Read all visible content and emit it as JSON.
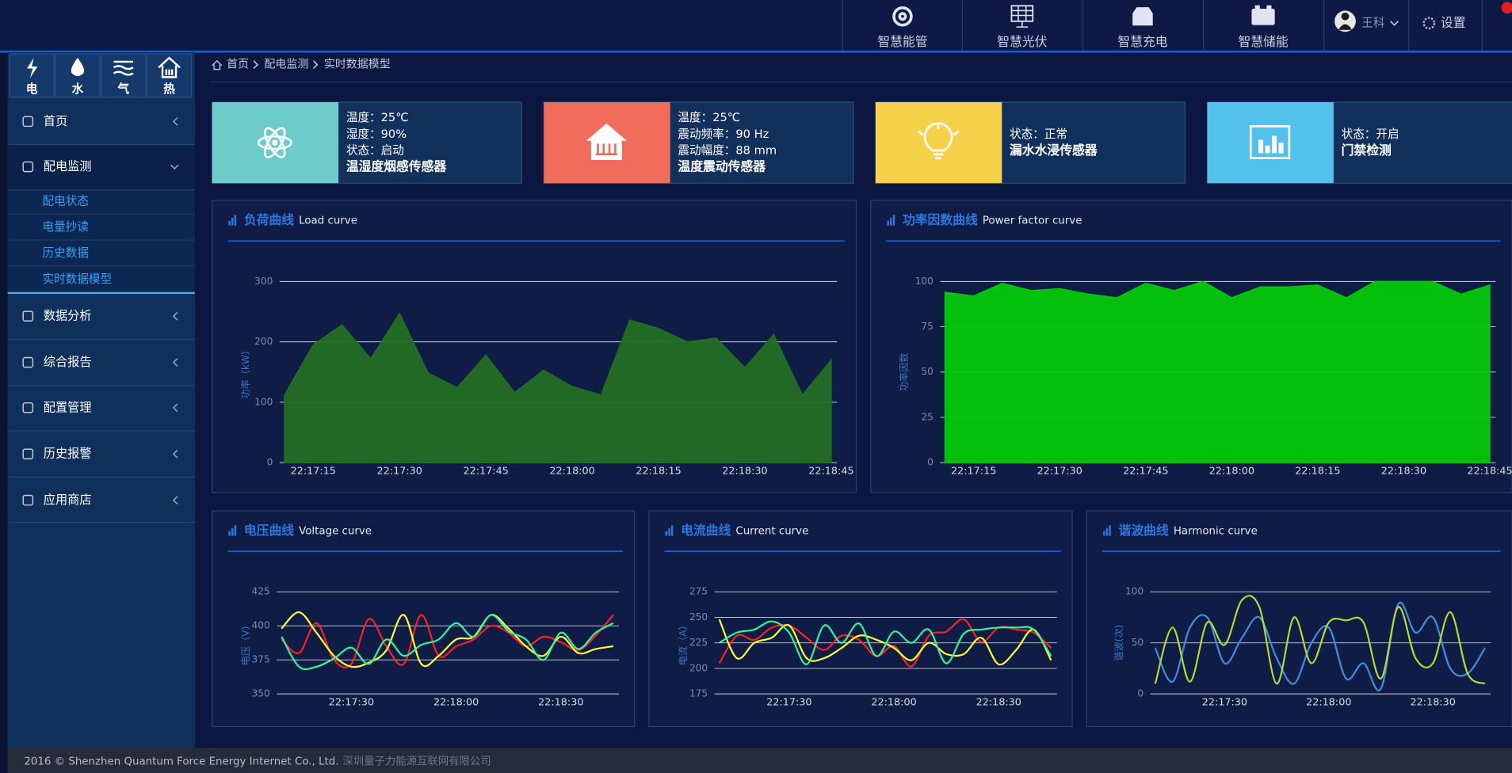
{
  "header": {
    "nav": [
      "智慧能管",
      "智慧光伏",
      "智慧充电",
      "智慧储能"
    ],
    "user": "王科",
    "settings": "设置"
  },
  "sidebar": {
    "energy_tabs": [
      "电",
      "水",
      "气",
      "热"
    ],
    "menu": [
      {
        "label": "首页"
      },
      {
        "label": "配电监测",
        "children": [
          "配电状态",
          "电量抄读",
          "历史数据",
          "实时数据模型"
        ]
      },
      {
        "label": "数据分析"
      },
      {
        "label": "综合报告"
      },
      {
        "label": "配置管理"
      },
      {
        "label": "历史报警"
      },
      {
        "label": "应用商店"
      }
    ]
  },
  "breadcrumb": [
    "首页",
    "配电监测",
    "实时数据模型"
  ],
  "cards": [
    {
      "color": "#6dcbca",
      "lines": [
        "温度：25℃",
        "湿度：90%",
        "状态：启动"
      ],
      "name": "温湿度烟感传感器"
    },
    {
      "color": "#f26c5c",
      "lines": [
        "温度：25℃",
        "震动频率：90 Hz",
        "震动幅度：88 mm"
      ],
      "name": "温度震动传感器"
    },
    {
      "color": "#f6d24b",
      "lines": [
        "状态：正常"
      ],
      "name": "漏水水浸传感器"
    },
    {
      "color": "#52c1ec",
      "lines": [
        "状态：开启"
      ],
      "name": "门禁检测"
    }
  ],
  "chart_data": [
    {
      "type": "area",
      "title": "负荷曲线",
      "subtitle": "Load curve",
      "ylabel": "功率（kW）",
      "categories": [
        null,
        "22:17:15",
        null,
        null,
        "22:17:30",
        null,
        null,
        "22:17:45",
        null,
        null,
        "22:18:00",
        null,
        null,
        "22:18:15",
        null,
        null,
        "22:18:30",
        null,
        null,
        "22:18:45"
      ],
      "values": [
        112,
        195,
        228,
        172,
        247,
        148,
        124,
        178,
        116,
        153,
        126,
        112,
        236,
        222,
        200,
        206,
        157,
        212,
        112,
        170
      ],
      "color": "#246e24",
      "ylim": [
        0,
        300
      ],
      "yticks": [
        0,
        100,
        200,
        300
      ],
      "grid": true
    },
    {
      "type": "area",
      "title": "功率因数曲线",
      "subtitle": "Power factor curve",
      "ylabel": "功率因数",
      "categories": [
        null,
        "22:17:15",
        null,
        null,
        "22:17:30",
        null,
        null,
        "22:17:45",
        null,
        null,
        "22:18:00",
        null,
        null,
        "22:18:15",
        null,
        null,
        "22:18:30",
        null,
        null,
        "22:18:45"
      ],
      "values": [
        94,
        92,
        99,
        95,
        96,
        93,
        91,
        99,
        95,
        100,
        91,
        97,
        97,
        98,
        91,
        100,
        100,
        100,
        93,
        98
      ],
      "color": "#03c80a",
      "ylim": [
        0,
        100
      ],
      "yticks": [
        0,
        25,
        50,
        75,
        100
      ],
      "grid": true
    },
    {
      "type": "line",
      "title": "电压曲线",
      "subtitle": "Voltage curve",
      "ylabel": "电压（V）",
      "smooth": true,
      "categories": [
        null,
        null,
        null,
        null,
        "22:17:30",
        null,
        null,
        null,
        null,
        null,
        "22:18:00",
        null,
        null,
        null,
        null,
        null,
        "22:18:30",
        null,
        null,
        null
      ],
      "series": [
        {
          "color": "#ff2020",
          "values": [
            390,
            380,
            402,
            375,
            372,
            405,
            385,
            372,
            408,
            378,
            385,
            390,
            400,
            395,
            385,
            392,
            388,
            382,
            393,
            408
          ]
        },
        {
          "color": "#ffff33",
          "values": [
            398,
            410,
            395,
            378,
            370,
            373,
            382,
            408,
            372,
            378,
            390,
            392,
            408,
            398,
            385,
            378,
            392,
            380,
            383,
            385
          ]
        },
        {
          "color": "#33f59a",
          "values": [
            392,
            370,
            370,
            376,
            384,
            372,
            390,
            378,
            386,
            390,
            402,
            392,
            408,
            396,
            390,
            375,
            395,
            383,
            395,
            402
          ]
        }
      ],
      "ylim": [
        350,
        425
      ],
      "yticks": [
        350,
        375,
        400,
        425
      ],
      "grid": true
    },
    {
      "type": "line",
      "title": "电流曲线",
      "subtitle": "Current curve",
      "ylabel": "电流（A）",
      "smooth": true,
      "categories": [
        null,
        null,
        null,
        null,
        "22:17:30",
        null,
        null,
        null,
        null,
        null,
        "22:18:00",
        null,
        null,
        null,
        null,
        null,
        "22:18:30",
        null,
        null,
        null
      ],
      "series": [
        {
          "color": "#ff2020",
          "values": [
            205,
            232,
            228,
            240,
            242,
            230,
            218,
            232,
            228,
            212,
            222,
            202,
            232,
            236,
            248,
            226,
            240,
            238,
            235,
            220
          ]
        },
        {
          "color": "#ffff33",
          "values": [
            248,
            210,
            225,
            230,
            242,
            210,
            210,
            220,
            232,
            228,
            220,
            208,
            225,
            214,
            214,
            230,
            204,
            218,
            238,
            208
          ]
        },
        {
          "color": "#33f59a",
          "values": [
            225,
            235,
            238,
            246,
            235,
            204,
            242,
            225,
            244,
            212,
            236,
            225,
            238,
            205,
            234,
            238,
            240,
            240,
            238,
            212
          ]
        }
      ],
      "ylim": [
        175,
        275
      ],
      "yticks": [
        175,
        200,
        225,
        250,
        275
      ],
      "grid": true
    },
    {
      "type": "line",
      "title": "谐波曲线",
      "subtitle": "Harmonic curve",
      "ylabel": "谐波(次)",
      "smooth": true,
      "categories": [
        null,
        null,
        null,
        null,
        "22:17:30",
        null,
        null,
        null,
        null,
        null,
        "22:18:00",
        null,
        null,
        null,
        null,
        null,
        "22:18:30",
        null,
        null,
        null
      ],
      "series": [
        {
          "color": "#3d8fe0",
          "values": [
            45,
            12,
            65,
            75,
            30,
            55,
            75,
            35,
            10,
            50,
            65,
            15,
            30,
            5,
            88,
            60,
            75,
            25,
            20,
            45
          ]
        },
        {
          "color": "#b5d930",
          "values": [
            10,
            65,
            12,
            70,
            48,
            92,
            85,
            10,
            75,
            30,
            70,
            72,
            70,
            15,
            85,
            35,
            30,
            80,
            20,
            10
          ]
        }
      ],
      "ylim": [
        0,
        100
      ],
      "yticks": [
        0,
        50,
        100
      ],
      "grid": true
    }
  ],
  "footer": {
    "copyright": "2016 © Shenzhen Quantum Force Energy Internet Co., Ltd.",
    "company": "深圳量子力能源互联网有限公司"
  }
}
